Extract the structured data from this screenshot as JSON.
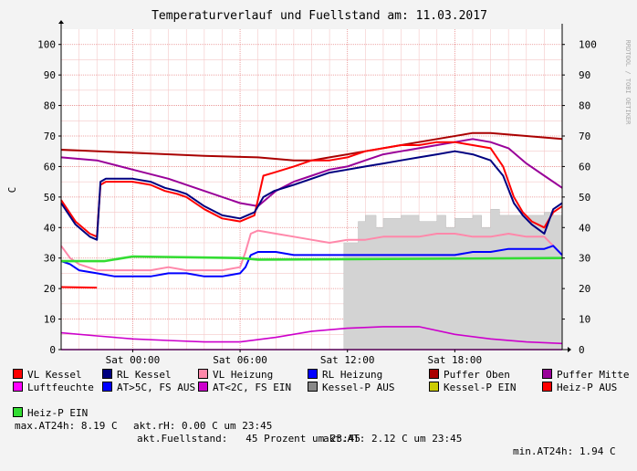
{
  "chart_data": {
    "type": "line",
    "title": "Temperaturverlauf und Fuellstand am: 11.03.2017",
    "ylabel": "C",
    "watermark": "RRDTOOL / TOBI OETIKER",
    "ylim": [
      0,
      105
    ],
    "xlim": [
      -4.0,
      24.0
    ],
    "yticks": [
      0,
      10,
      20,
      30,
      40,
      50,
      60,
      70,
      80,
      90,
      100
    ],
    "xticks": [
      {
        "x": 0,
        "label": "Sat 00:00"
      },
      {
        "x": 6,
        "label": "Sat 06:00"
      },
      {
        "x": 12,
        "label": "Sat 12:00"
      },
      {
        "x": 18,
        "label": "Sat 18:00"
      }
    ],
    "grid": true,
    "series": [
      {
        "name": "VL Kessel",
        "color": "#ff0000",
        "x": [
          -4.0,
          -3.2,
          -2.4,
          -2.0,
          -1.8,
          -1.5,
          0.0,
          1.0,
          1.8,
          2.5,
          3.0,
          4.0,
          5.0,
          6.0,
          6.8,
          7.3,
          7.9,
          9.0,
          10.0,
          11.0,
          12.0,
          13.0,
          14.0,
          15.0,
          16.0,
          17.0,
          18.0,
          19.0,
          20.0,
          20.7,
          21.3,
          21.8,
          22.3,
          23.0,
          23.5,
          24.0
        ],
        "values": [
          49,
          42,
          38,
          37,
          54,
          55,
          55,
          54,
          52,
          51,
          50,
          46,
          43,
          42,
          44,
          57,
          58,
          60,
          62,
          62,
          63,
          65,
          66,
          67,
          67,
          68,
          68,
          67,
          66,
          60,
          50,
          45,
          42,
          40,
          45,
          47
        ]
      },
      {
        "name": "RL Kessel",
        "color": "#000080",
        "x": [
          -4.0,
          -3.2,
          -2.4,
          -2.0,
          -1.8,
          -1.5,
          0.0,
          1.0,
          1.8,
          2.5,
          3.0,
          4.0,
          5.0,
          6.0,
          6.8,
          7.3,
          7.9,
          9.0,
          10.0,
          11.0,
          12.0,
          13.0,
          14.0,
          15.0,
          16.0,
          17.0,
          18.0,
          19.0,
          20.0,
          20.7,
          21.3,
          21.8,
          22.3,
          23.0,
          23.5,
          24.0
        ],
        "values": [
          48,
          41,
          37,
          36,
          55,
          56,
          56,
          55,
          53,
          52,
          51,
          47,
          44,
          43,
          45,
          50,
          52,
          54,
          56,
          58,
          59,
          60,
          61,
          62,
          63,
          64,
          65,
          64,
          62,
          57,
          48,
          44,
          41,
          38,
          46,
          48
        ]
      },
      {
        "name": "VL Heizung",
        "color": "#ff88aa",
        "x": [
          -4.0,
          -3.5,
          -3.0,
          -2.5,
          -2.0,
          -1.0,
          0.0,
          1.0,
          2.0,
          3.0,
          4.0,
          5.0,
          6.0,
          6.3,
          6.6,
          7.0,
          8.0,
          9.0,
          10.0,
          11.0,
          12.0,
          13.0,
          14.0,
          15.0,
          16.0,
          17.0,
          18.0,
          19.0,
          20.0,
          21.0,
          22.0,
          23.0,
          23.5,
          24.0
        ],
        "values": [
          34,
          30,
          28,
          27,
          26,
          26,
          26,
          26,
          27,
          26,
          26,
          26,
          27,
          32,
          38,
          39,
          38,
          37,
          36,
          35,
          36,
          36,
          37,
          37,
          37,
          38,
          38,
          37,
          37,
          38,
          37,
          37,
          34,
          31
        ]
      },
      {
        "name": "RL Heizung",
        "color": "#0000ff",
        "x": [
          -4.0,
          -3.5,
          -3.0,
          -2.0,
          -1.0,
          0.0,
          1.0,
          2.0,
          3.0,
          4.0,
          5.0,
          6.0,
          6.3,
          6.6,
          7.0,
          8.0,
          9.0,
          10.0,
          11.0,
          12.0,
          13.0,
          14.0,
          15.0,
          16.0,
          17.0,
          18.0,
          19.0,
          20.0,
          21.0,
          22.0,
          23.0,
          23.5,
          24.0
        ],
        "values": [
          29,
          28,
          26,
          25,
          24,
          24,
          24,
          25,
          25,
          24,
          24,
          25,
          27,
          31,
          32,
          32,
          31,
          31,
          31,
          31,
          31,
          31,
          31,
          31,
          31,
          31,
          32,
          32,
          33,
          33,
          33,
          34,
          31
        ]
      },
      {
        "name": "Puffer Oben",
        "color": "#aa0000",
        "x": [
          -4.0,
          0.0,
          4.0,
          7.0,
          9.0,
          10.0,
          11.0,
          13.0,
          15.0,
          17.0,
          19.0,
          20.0,
          22.0,
          24.0
        ],
        "values": [
          65.5,
          64.5,
          63.5,
          63,
          62,
          62,
          63,
          65,
          67,
          69,
          71,
          71,
          70,
          69
        ]
      },
      {
        "name": "Puffer Mitte",
        "color": "#990099",
        "x": [
          -4.0,
          -2.0,
          0.0,
          2.0,
          4.0,
          6.0,
          7.0,
          8.0,
          9.0,
          10.0,
          11.0,
          12.0,
          13.0,
          14.0,
          15.0,
          16.0,
          17.0,
          18.0,
          19.0,
          20.0,
          21.0,
          22.0,
          23.0,
          24.0
        ],
        "values": [
          63,
          62,
          59,
          56,
          52,
          48,
          47,
          52,
          55,
          57,
          59,
          60,
          62,
          64,
          65,
          66,
          67,
          68,
          69,
          68,
          66,
          61,
          57,
          53
        ]
      },
      {
        "name": "Luftfeuchte",
        "color": "#ff00ff",
        "x": [
          -4.0,
          24.0
        ],
        "values": [
          0,
          0
        ]
      },
      {
        "name": "AT>5C, FS AUS",
        "color": "#0000ff",
        "x": [],
        "values": []
      },
      {
        "name": "AT<2C, FS EIN",
        "color": "#cc00cc",
        "x": [
          -4.0,
          -2.0,
          0.0,
          2.0,
          4.0,
          6.0,
          8.0,
          10.0,
          12.0,
          14.0,
          16.0,
          18.0,
          20.0,
          22.0,
          24.0
        ],
        "values": [
          5.5,
          4.5,
          3.5,
          3,
          2.5,
          2.5,
          4,
          6,
          7,
          7.5,
          7.5,
          5,
          3.5,
          2.5,
          2
        ]
      },
      {
        "name": "Kessel-P AUS",
        "color": "#888888",
        "x": [
          11.8,
          12.6,
          13.0,
          13.6,
          14.0,
          15.0,
          16.0,
          17.0,
          17.5,
          18.0,
          19.0,
          19.5,
          20.0,
          20.5,
          21.0,
          22.0,
          23.0,
          23.5,
          24.0
        ],
        "values": [
          35,
          42,
          44,
          40,
          43,
          44,
          42,
          44,
          40,
          43,
          44,
          40,
          46,
          44,
          44,
          44,
          45,
          44,
          40
        ]
      },
      {
        "name": "Kessel-P EIN",
        "color": "#cccc00",
        "x": [],
        "values": []
      },
      {
        "name": "Heiz-P AUS",
        "color": "#ff0000",
        "x": [
          -4.0,
          -2.0
        ],
        "values": [
          20.5,
          20.3
        ]
      },
      {
        "name": "Heiz-P EIN",
        "color": "#33dd33",
        "x": [
          -4.0,
          -1.6,
          0.0,
          6.0,
          7.0,
          24.0
        ],
        "values": [
          29,
          29,
          30.5,
          30,
          29.5,
          30
        ]
      }
    ]
  },
  "legend": [
    {
      "label": "VL Kessel",
      "color": "#ff0000"
    },
    {
      "label": "RL Kessel",
      "color": "#000080"
    },
    {
      "label": "VL Heizung",
      "color": "#ff88aa"
    },
    {
      "label": "RL Heizung",
      "color": "#0000ff"
    },
    {
      "label": "Puffer Oben",
      "color": "#aa0000"
    },
    {
      "label": "Puffer Mitte",
      "color": "#990099"
    },
    {
      "label": "Luftfeuchte",
      "color": "#ff00ff"
    },
    {
      "label": "AT>5C, FS AUS",
      "color": "#0000ff"
    },
    {
      "label": "AT<2C, FS EIN",
      "color": "#cc00cc"
    },
    {
      "label": "Kessel-P AUS",
      "color": "#888888"
    },
    {
      "label": "Kessel-P EIN",
      "color": "#cccc00"
    },
    {
      "label": "Heiz-P AUS",
      "color": "#ff0000"
    },
    {
      "label": "Heiz-P EIN",
      "color": "#33dd33"
    }
  ],
  "stats": {
    "akt_rh": "akt.rH: 0.00 C um 23:45",
    "akt_at": "akt.AT: 2.12 C um 23:45",
    "min_at": "min.AT24h: 1.94 C",
    "max_at": "max.AT24h: 8.19 C",
    "fuellstand": "akt.Fuellstand:   45 Prozent um 23:45"
  }
}
